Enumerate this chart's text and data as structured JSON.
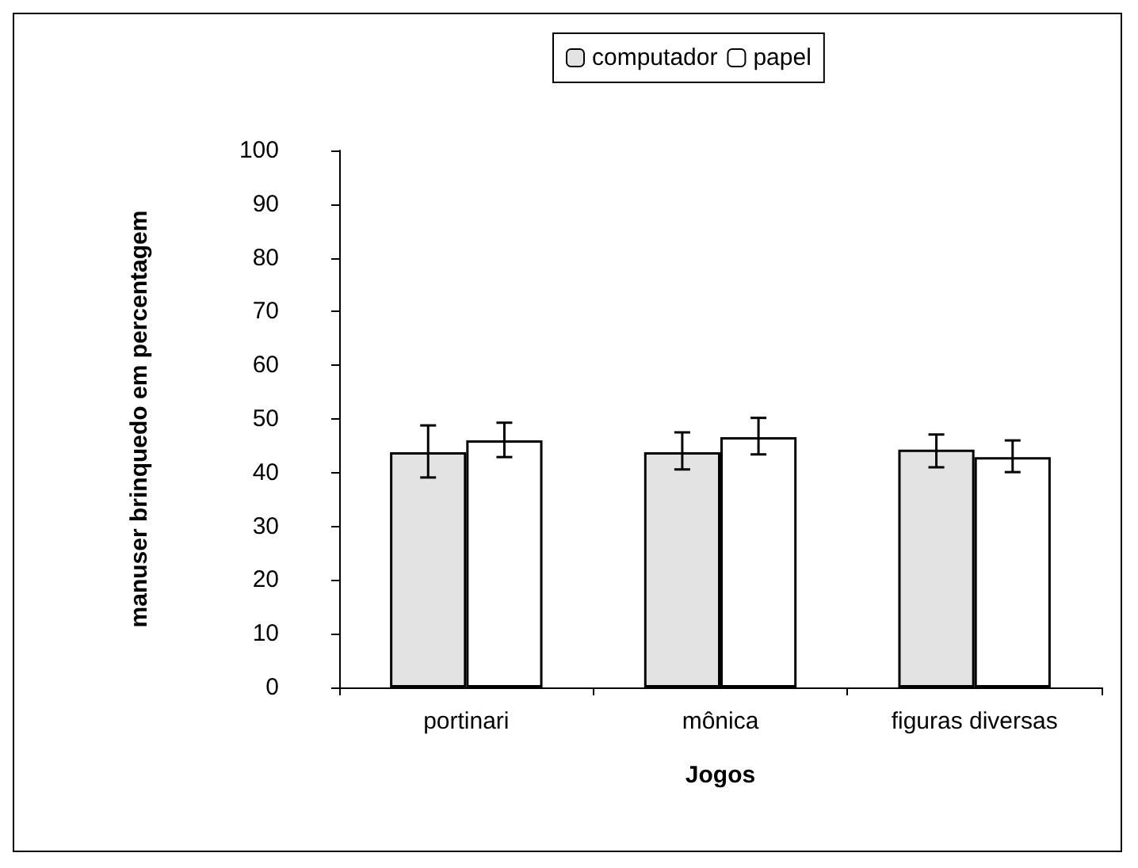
{
  "chart_data": {
    "type": "bar",
    "xlabel": "Jogos",
    "ylabel": "manuser brinquedo em percentagem",
    "categories": [
      "portinari",
      "mônica",
      "figuras diversas"
    ],
    "series": [
      {
        "name": "computador",
        "color": "#e3e3e3",
        "values": [
          43.8,
          43.8,
          44.3
        ],
        "errors": [
          [
            39.1,
            48.8
          ],
          [
            40.6,
            47.5
          ],
          [
            41.0,
            47.1
          ]
        ]
      },
      {
        "name": "papel",
        "color": "#ffffff",
        "values": [
          46.0,
          46.6,
          42.9
        ],
        "errors": [
          [
            42.9,
            49.3
          ],
          [
            43.4,
            50.2
          ],
          [
            40.1,
            46.0
          ]
        ]
      }
    ],
    "ylim": [
      0,
      100
    ],
    "yticks": [
      0,
      10,
      20,
      30,
      40,
      50,
      60,
      70,
      80,
      90,
      100
    ],
    "grid": false,
    "legend": "top"
  }
}
